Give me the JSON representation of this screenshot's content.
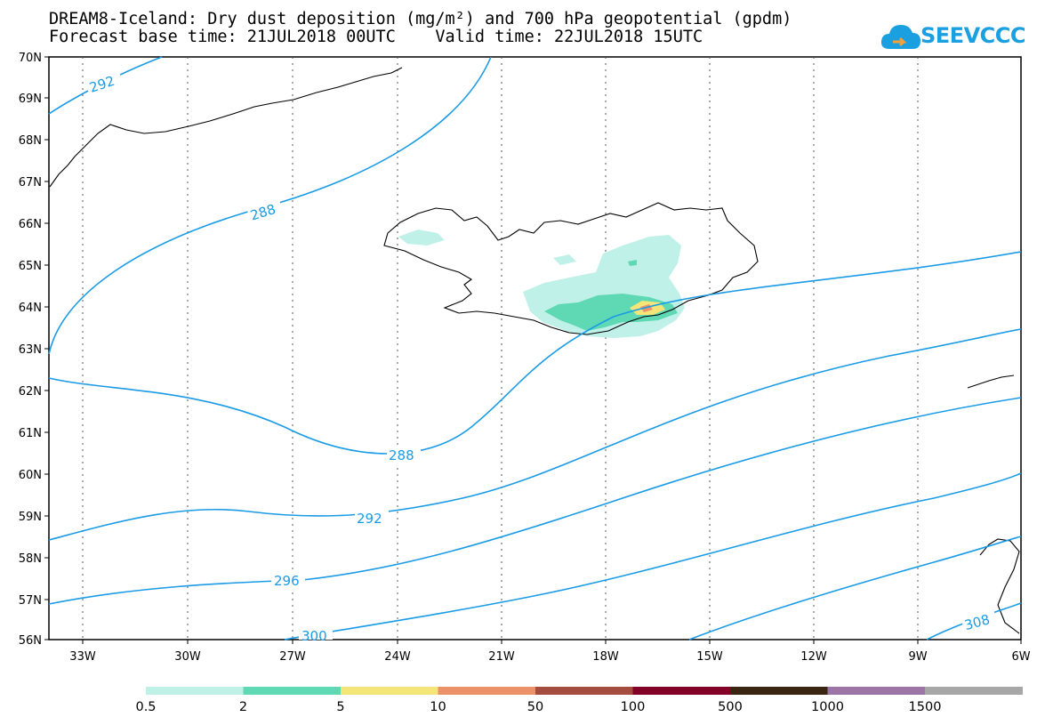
{
  "title": {
    "line1": "DREAM8-Iceland: Dry dust deposition (mg/m²) and 700 hPa geopotential (gpdm)",
    "line2": "Forecast base time: 21JUL2018 00UTC    Valid time: 22JUL2018 15UTC"
  },
  "logo": {
    "text": "SEEVCCC",
    "color": "#1aa0e0"
  },
  "map": {
    "lat_labels": [
      "70N",
      "69N",
      "68N",
      "67N",
      "66N",
      "65N",
      "64N",
      "63N",
      "62N",
      "61N",
      "60N",
      "59N",
      "58N",
      "57N",
      "56N"
    ],
    "lon_labels": [
      "33W",
      "30W",
      "27W",
      "24W",
      "21W",
      "18W",
      "15W",
      "12W",
      "9W",
      "6W"
    ],
    "contour_color": "#1a9be6",
    "contour_labels": [
      "292",
      "288",
      "288",
      "292",
      "296",
      "300",
      "308"
    ],
    "coast_color": "#000000"
  },
  "colorbar": {
    "colors": [
      "#c0f1e9",
      "#5ed9b4",
      "#f5e579",
      "#eb926b",
      "#a44d3e",
      "#820228",
      "#3a2412",
      "#9c74a6",
      "#a7a7a7"
    ],
    "labels": [
      "0.5",
      "2",
      "5",
      "10",
      "50",
      "100",
      "500",
      "1000",
      "1500"
    ]
  }
}
